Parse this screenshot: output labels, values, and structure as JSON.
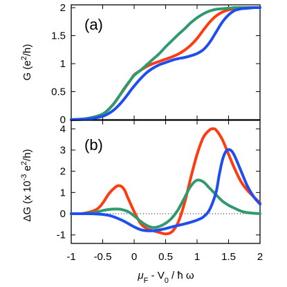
{
  "colors": {
    "red": "#ff3b0f",
    "blue": "#1f4ef0",
    "green": "#2e9a6e"
  },
  "chart_data": [
    {
      "type": "line",
      "panel_label": "(a)",
      "ylabel_text": "G (e",
      "ylabel_sup": "2",
      "ylabel_tail": "/h)",
      "xlim": [
        -1,
        2
      ],
      "ylim": [
        0,
        2.05
      ],
      "yticks": [
        0,
        0.5,
        1,
        1.5,
        2
      ],
      "ytick_labels": [
        "0",
        "0.5",
        "1",
        "1.5",
        "2"
      ],
      "zero_line": true,
      "series": [
        {
          "color": "red",
          "x": [
            -1.0,
            -0.75,
            -0.5,
            -0.35,
            -0.25,
            -0.15,
            -0.05,
            0.0,
            0.1,
            0.2,
            0.3,
            0.4,
            0.5,
            0.6,
            0.7,
            0.8,
            0.9,
            1.0,
            1.1,
            1.2,
            1.3,
            1.4,
            1.5,
            1.6,
            1.7,
            1.8,
            1.9,
            2.0
          ],
          "y": [
            0.0,
            0.02,
            0.1,
            0.25,
            0.4,
            0.56,
            0.72,
            0.8,
            0.88,
            0.95,
            1.0,
            1.04,
            1.08,
            1.12,
            1.17,
            1.24,
            1.33,
            1.45,
            1.6,
            1.74,
            1.85,
            1.92,
            1.96,
            1.98,
            1.99,
            1.99,
            2.0,
            2.0
          ]
        },
        {
          "color": "green",
          "x": [
            -1.0,
            -0.75,
            -0.5,
            -0.35,
            -0.25,
            -0.15,
            -0.05,
            0.0,
            0.1,
            0.2,
            0.3,
            0.4,
            0.5,
            0.6,
            0.7,
            0.8,
            0.9,
            1.0,
            1.1,
            1.2,
            1.3,
            1.4,
            1.5,
            1.6,
            1.7,
            1.8,
            1.9,
            2.0
          ],
          "y": [
            0.0,
            0.02,
            0.1,
            0.25,
            0.4,
            0.57,
            0.72,
            0.79,
            0.88,
            0.98,
            1.08,
            1.18,
            1.3,
            1.41,
            1.52,
            1.62,
            1.73,
            1.82,
            1.89,
            1.94,
            1.97,
            1.98,
            1.99,
            2.0,
            2.0,
            2.0,
            2.0,
            2.0
          ]
        },
        {
          "color": "blue",
          "x": [
            -1.0,
            -0.75,
            -0.5,
            -0.35,
            -0.25,
            -0.15,
            -0.05,
            0.0,
            0.1,
            0.2,
            0.3,
            0.4,
            0.5,
            0.6,
            0.7,
            0.8,
            0.9,
            1.0,
            1.1,
            1.2,
            1.3,
            1.4,
            1.5,
            1.6,
            1.7,
            1.8,
            1.9,
            2.0
          ],
          "y": [
            0.0,
            0.01,
            0.06,
            0.15,
            0.25,
            0.38,
            0.53,
            0.6,
            0.73,
            0.84,
            0.92,
            0.98,
            1.02,
            1.06,
            1.09,
            1.11,
            1.14,
            1.18,
            1.25,
            1.38,
            1.56,
            1.74,
            1.87,
            1.95,
            1.98,
            1.99,
            2.0,
            2.0
          ]
        }
      ]
    },
    {
      "type": "line",
      "panel_label": "(b)",
      "ylabel_text": "ΔG (x 10",
      "ylabel_sup": "-3",
      "ylabel_tail": " e",
      "ylabel_sup2": "2",
      "ylabel_tail2": "/h)",
      "xlim": [
        -1,
        2
      ],
      "ylim": [
        -1.4,
        4.4
      ],
      "yticks": [
        -1,
        0,
        1,
        2,
        3,
        4
      ],
      "ytick_labels": [
        "-1",
        "0",
        "1",
        "2",
        "3",
        "4"
      ],
      "xticks": [
        -1,
        -0.5,
        0,
        0.5,
        1,
        1.5,
        2
      ],
      "xtick_labels": [
        "-1",
        "-0.5",
        "0",
        "0.5",
        "1",
        "1.5",
        "2"
      ],
      "xlabel_mu": "μ",
      "xlabel_sub_f": "F",
      "xlabel_mid": " - V",
      "xlabel_sub_0": "0",
      "xlabel_tail": " / ħ ω",
      "zero_line": true,
      "series": [
        {
          "color": "red",
          "x": [
            -1.0,
            -0.8,
            -0.6,
            -0.5,
            -0.4,
            -0.3,
            -0.25,
            -0.2,
            -0.15,
            -0.1,
            0.0,
            0.1,
            0.2,
            0.3,
            0.4,
            0.5,
            0.6,
            0.7,
            0.8,
            0.9,
            1.0,
            1.1,
            1.2,
            1.25,
            1.3,
            1.4,
            1.5,
            1.6,
            1.7,
            1.8,
            2.0
          ],
          "y": [
            0.0,
            0.02,
            0.2,
            0.5,
            0.95,
            1.25,
            1.32,
            1.28,
            1.1,
            0.75,
            0.1,
            -0.45,
            -0.7,
            -0.8,
            -0.88,
            -0.95,
            -0.85,
            -0.4,
            0.5,
            1.7,
            2.8,
            3.6,
            3.95,
            4.0,
            3.95,
            3.5,
            2.8,
            2.1,
            1.5,
            1.1,
            0.5
          ]
        },
        {
          "color": "green",
          "x": [
            -1.0,
            -0.8,
            -0.6,
            -0.5,
            -0.4,
            -0.3,
            -0.2,
            -0.1,
            0.0,
            0.1,
            0.2,
            0.3,
            0.4,
            0.5,
            0.6,
            0.7,
            0.8,
            0.9,
            1.0,
            1.1,
            1.2,
            1.3,
            1.4,
            1.5,
            1.6,
            1.7,
            1.8,
            2.0
          ],
          "y": [
            0.0,
            0.01,
            0.08,
            0.15,
            0.2,
            0.22,
            0.2,
            0.1,
            -0.1,
            -0.35,
            -0.55,
            -0.65,
            -0.6,
            -0.45,
            -0.2,
            0.2,
            0.75,
            1.3,
            1.58,
            1.5,
            1.2,
            0.9,
            0.6,
            0.4,
            0.25,
            0.12,
            0.05,
            0.0
          ]
        },
        {
          "color": "blue",
          "x": [
            -1.0,
            -0.8,
            -0.6,
            -0.4,
            -0.2,
            0.0,
            0.1,
            0.2,
            0.3,
            0.4,
            0.5,
            0.6,
            0.7,
            0.8,
            0.9,
            1.0,
            1.1,
            1.2,
            1.3,
            1.35,
            1.4,
            1.45,
            1.5,
            1.55,
            1.6,
            1.7,
            1.8,
            1.9,
            2.0
          ],
          "y": [
            0.0,
            0.0,
            -0.01,
            -0.08,
            -0.3,
            -0.62,
            -0.75,
            -0.8,
            -0.8,
            -0.76,
            -0.7,
            -0.62,
            -0.55,
            -0.48,
            -0.4,
            -0.3,
            -0.15,
            0.2,
            1.0,
            1.8,
            2.5,
            2.9,
            3.02,
            2.95,
            2.7,
            2.0,
            1.3,
            0.8,
            0.45
          ]
        }
      ]
    }
  ]
}
